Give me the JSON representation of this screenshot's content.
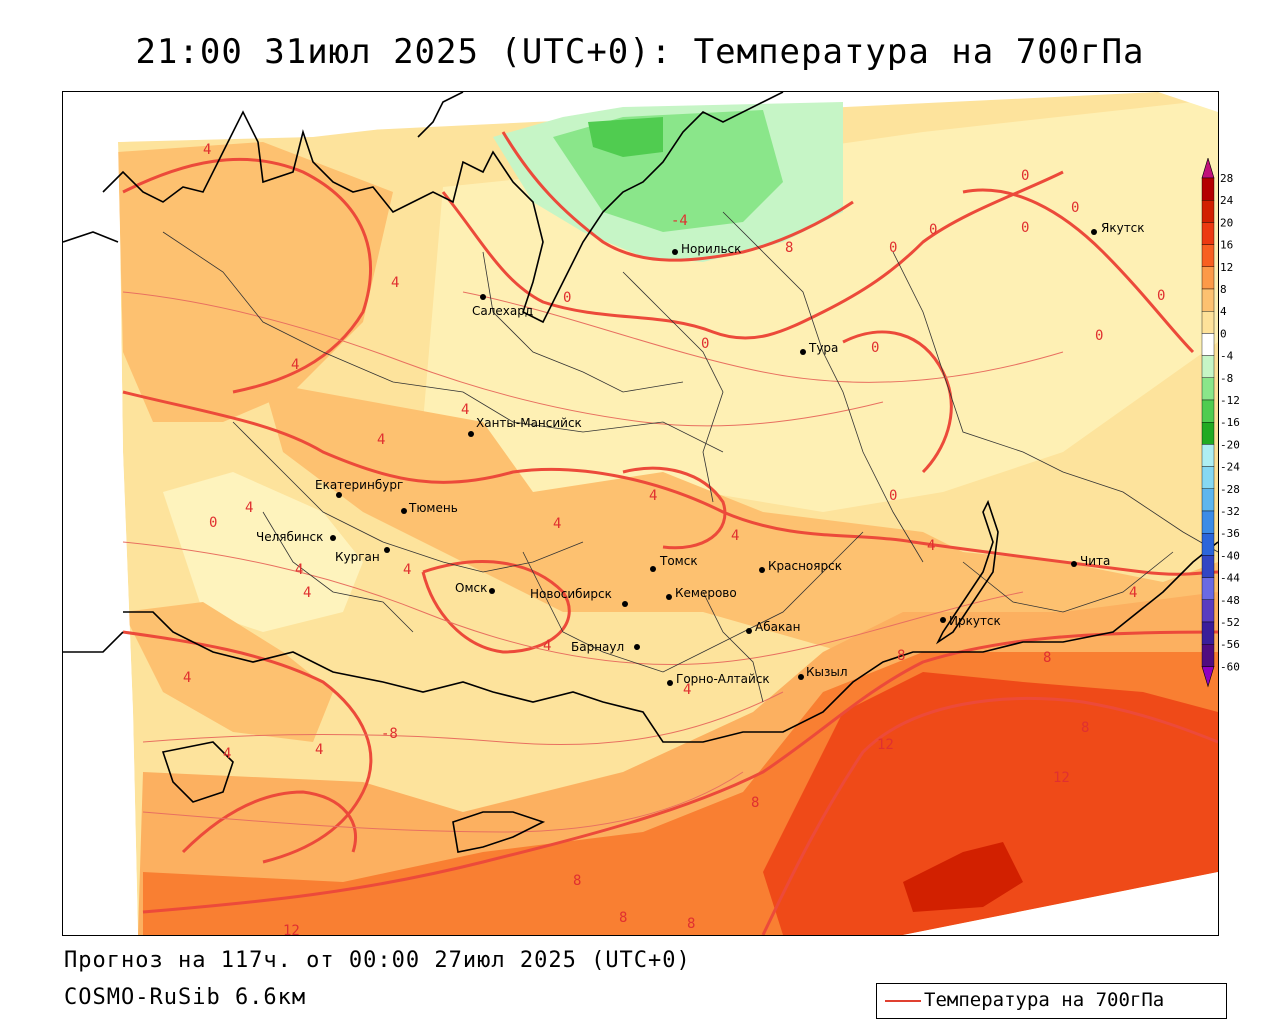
{
  "title": "21:00 31июл 2025 (UTC+0): Температура на 700гПа",
  "forecast_line": "Прогноз на 117ч. от 00:00 27июл 2025 (UTC+0)",
  "model_line": "COSMO-RuSib 6.6км",
  "legend": {
    "label": "Температура на 700гПа",
    "line_color": "#e04030"
  },
  "colorbar": {
    "ticks": [
      "28",
      "24",
      "20",
      "16",
      "12",
      "8",
      "4",
      "0",
      "-4",
      "-8",
      "-12",
      "-16",
      "-20",
      "-24",
      "-28",
      "-32",
      "-36",
      "-40",
      "-44",
      "-48",
      "-52",
      "-56",
      "-60"
    ],
    "colors": [
      "#b40000",
      "#d22000",
      "#ec3a10",
      "#f86020",
      "#fc9a48",
      "#fdc170",
      "#fee29a",
      "#ffffff",
      "#c6f5c6",
      "#8ae68a",
      "#50cc50",
      "#22aa22",
      "#aeeef2",
      "#86d8f2",
      "#5eb6ee",
      "#3c8ce6",
      "#2c66da",
      "#3246c4",
      "#6a6ae2",
      "#5a3cc0",
      "#3a1e9a",
      "#500c80",
      "#9000a0"
    ]
  },
  "cities": [
    {
      "name": "Якутск"
    },
    {
      "name": "Норильск"
    },
    {
      "name": "Салехард"
    },
    {
      "name": "Тура"
    },
    {
      "name": "Ханты-Мансийск"
    },
    {
      "name": "Екатеринбург"
    },
    {
      "name": "Тюмень"
    },
    {
      "name": "Челябинск"
    },
    {
      "name": "Курган"
    },
    {
      "name": "Омск"
    },
    {
      "name": "Томск"
    },
    {
      "name": "Красноярск"
    },
    {
      "name": "Новосибирск"
    },
    {
      "name": "Кемерово"
    },
    {
      "name": "Абакан"
    },
    {
      "name": "Барнаул"
    },
    {
      "name": "Горно-Алтайск"
    },
    {
      "name": "Кызыл"
    },
    {
      "name": "Иркутск"
    },
    {
      "name": "Чита"
    }
  ],
  "contour_labels": [
    "4",
    "4",
    "4",
    "4",
    "4",
    "4",
    "4",
    "4",
    "4",
    "4",
    "4",
    "4",
    "4",
    "4",
    "4",
    "4",
    "4",
    "4",
    "4",
    "0",
    "0",
    "0",
    "0",
    "0",
    "0",
    "0",
    "0",
    "0",
    "0",
    "0",
    "0",
    "-8",
    "-4",
    "8",
    "8",
    "8",
    "8",
    "8",
    "8",
    "8",
    "8",
    "12",
    "12",
    "12"
  ]
}
